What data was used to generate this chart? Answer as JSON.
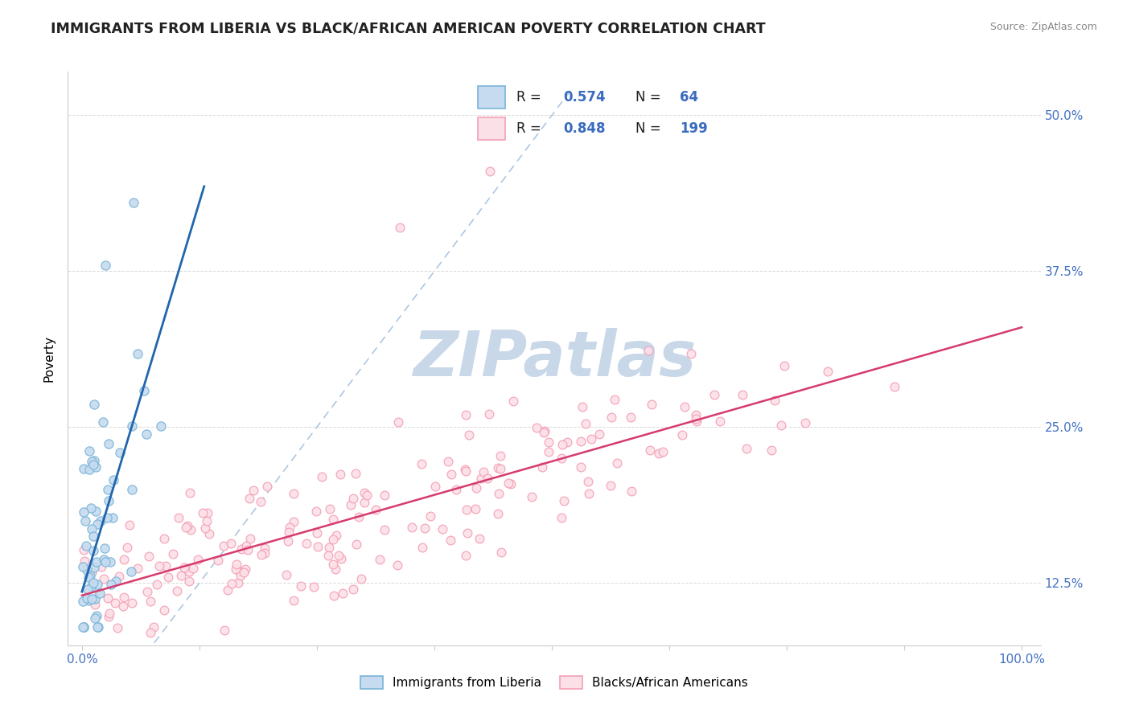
{
  "title": "IMMIGRANTS FROM LIBERIA VS BLACK/AFRICAN AMERICAN POVERTY CORRELATION CHART",
  "source": "Source: ZipAtlas.com",
  "ylabel": "Poverty",
  "legend1_R": "0.574",
  "legend1_N": "64",
  "legend2_R": "0.848",
  "legend2_N": "199",
  "blue_edge": "#7ab4d8",
  "blue_fill": "#c6dbef",
  "pink_edge": "#f4a0b5",
  "pink_fill": "#fce0e8",
  "trend_blue": "#2166ac",
  "trend_pink": "#d63b6e",
  "dash_color": "#aec7e0",
  "watermark_color": "#c8d8e8",
  "legend_label1": "Immigrants from Liberia",
  "legend_label2": "Blacks/African Americans",
  "background": "#ffffff",
  "ytick_color": "#4472c4",
  "xtick_color": "#4472c4",
  "grid_color": "#d0d0d0",
  "title_color": "#222222",
  "source_color": "#888888"
}
